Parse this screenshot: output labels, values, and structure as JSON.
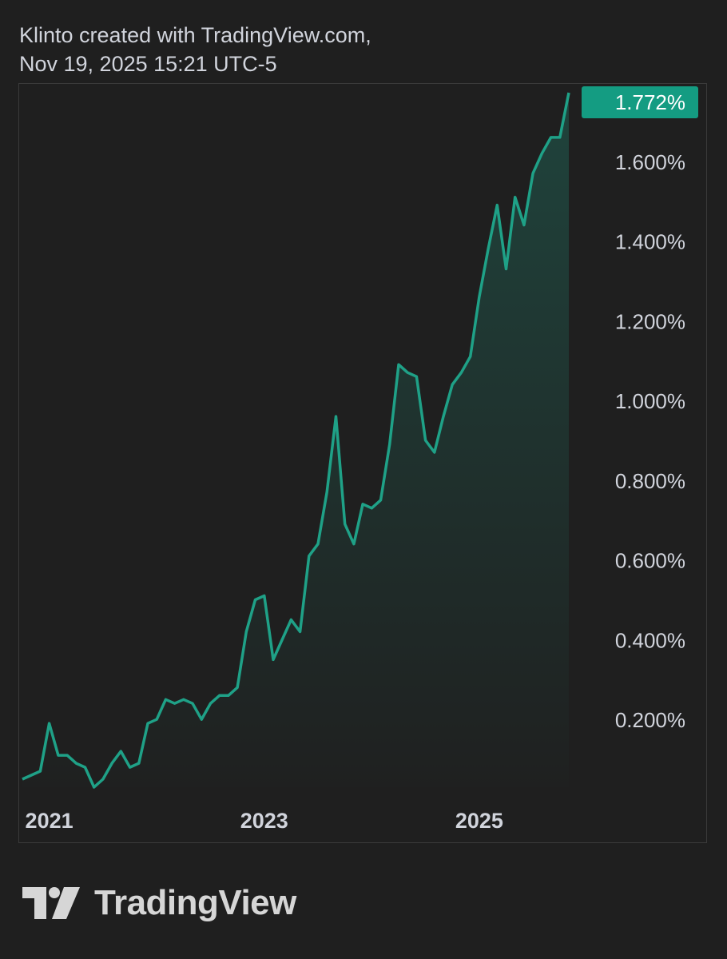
{
  "header": {
    "line1": "Klinto created with TradingView.com,",
    "line2": "Nov 19, 2025 15:21 UTC-5"
  },
  "branding": {
    "logo_icon": "tradingview-logo-icon",
    "logo_text": "TradingView"
  },
  "colors": {
    "background": "#1f1f1f",
    "line": "#1fa187",
    "last_badge": "#149c82",
    "text": "#d1d4dc"
  },
  "chart_data": {
    "type": "area",
    "title": "",
    "xlabel": "",
    "ylabel": "",
    "x_ticks": [
      "2021",
      "2023",
      "2025"
    ],
    "y_ticks": [
      "0.200%",
      "0.400%",
      "0.600%",
      "0.800%",
      "1.000%",
      "1.200%",
      "1.400%",
      "1.600%"
    ],
    "last_value_label": "1.772%",
    "ylim": [
      0.03,
      1.78
    ],
    "xlim": [
      "2020-10",
      "2026-06"
    ],
    "grid": false,
    "series": [
      {
        "x": [
          "2020-10",
          "2020-11",
          "2020-12",
          "2021-01",
          "2021-02",
          "2021-03",
          "2021-04",
          "2021-05",
          "2021-06",
          "2021-07",
          "2021-08",
          "2021-09",
          "2021-10",
          "2021-11",
          "2021-12",
          "2022-01",
          "2022-02",
          "2022-03",
          "2022-04",
          "2022-05",
          "2022-06",
          "2022-07",
          "2022-08",
          "2022-09",
          "2022-10",
          "2022-11",
          "2022-12",
          "2023-01",
          "2023-02",
          "2023-03",
          "2023-04",
          "2023-05",
          "2023-06",
          "2023-07",
          "2023-08",
          "2023-09",
          "2023-10",
          "2023-11",
          "2023-12",
          "2024-01",
          "2024-02",
          "2024-03",
          "2024-04",
          "2024-05",
          "2024-06",
          "2024-07",
          "2024-08",
          "2024-09",
          "2024-10",
          "2024-11",
          "2024-12",
          "2025-01",
          "2025-02",
          "2025-03",
          "2025-04",
          "2025-05",
          "2025-06",
          "2025-07",
          "2025-08",
          "2025-09",
          "2025-10",
          "2025-11"
        ],
        "values": [
          0.05,
          0.06,
          0.07,
          0.19,
          0.11,
          0.11,
          0.09,
          0.08,
          0.03,
          0.05,
          0.09,
          0.12,
          0.08,
          0.09,
          0.19,
          0.2,
          0.25,
          0.24,
          0.25,
          0.24,
          0.2,
          0.24,
          0.26,
          0.26,
          0.28,
          0.42,
          0.5,
          0.51,
          0.35,
          0.4,
          0.45,
          0.42,
          0.61,
          0.64,
          0.77,
          0.96,
          0.69,
          0.64,
          0.74,
          0.73,
          0.75,
          0.89,
          1.09,
          1.07,
          1.06,
          0.9,
          0.87,
          0.96,
          1.04,
          1.07,
          1.11,
          1.26,
          1.38,
          1.49,
          1.33,
          1.51,
          1.44,
          1.57,
          1.62,
          1.66,
          1.66,
          1.772
        ]
      }
    ]
  }
}
